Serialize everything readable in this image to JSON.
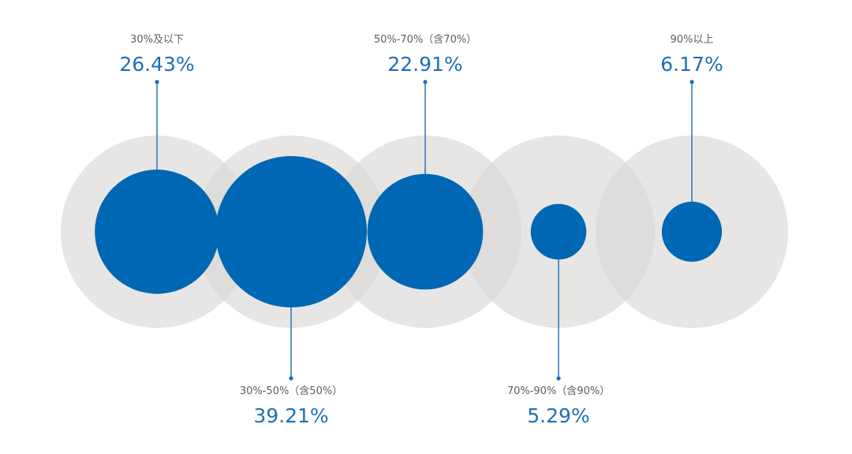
{
  "chart_data": {
    "type": "bubble",
    "title": "",
    "xlabel": "",
    "ylabel": "",
    "categories": [
      "30%及以下",
      "30%-50%（含50%）",
      "50%-70%（含70%）",
      "70%-90%（含90%）",
      "90%以上"
    ],
    "values": [
      26.43,
      39.21,
      22.91,
      5.29,
      6.17
    ],
    "value_labels": [
      "26.43%",
      "39.21%",
      "22.91%",
      "5.29%",
      "6.17%"
    ],
    "label_positions": [
      "top",
      "bottom",
      "top",
      "bottom",
      "top"
    ],
    "unit": "%",
    "colors": {
      "bubble": "#0067b4",
      "backdrop": "#d8d7d5",
      "connector": "#1c6db8",
      "category_text": "#5e5e5e",
      "value_text": "#1f6fb7"
    }
  }
}
